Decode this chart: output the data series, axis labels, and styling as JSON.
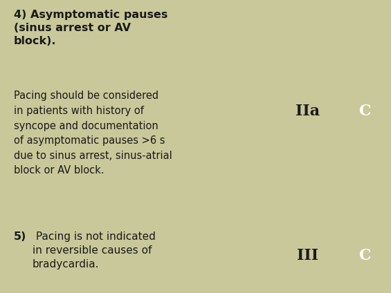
{
  "row1_bold": "4) Asymptomatic pauses\n(sinus arrest or AV\nblock).",
  "row1_normal": "Pacing should be considered\nin patients with history of\nsyncope and documentation\nof asymptomatic pauses >6 s\ndue to sinus arrest, sinus-atrial\nblock or AV block.",
  "row1_class": "IIa",
  "row1_evidence": "C",
  "row1_class_color": "#F5A800",
  "row1_evidence_color": "#8C90BC",
  "row1_bg": "#FFFFFF",
  "row2_bold": "5)",
  "row2_normal": " Pacing is not indicated\nin reversible causes of\nbradycardia.",
  "row2_class": "III",
  "row2_evidence": "C",
  "row2_class_color": "#E05030",
  "row2_evidence_color": "#8C90BC",
  "row2_bg": "#FAF3DC",
  "text_dark": "#1A1A1A",
  "text_white": "#FFFFFF",
  "border_color": "#C8C89A",
  "fig_w": 5.65,
  "fig_h": 4.24,
  "dpi": 100
}
